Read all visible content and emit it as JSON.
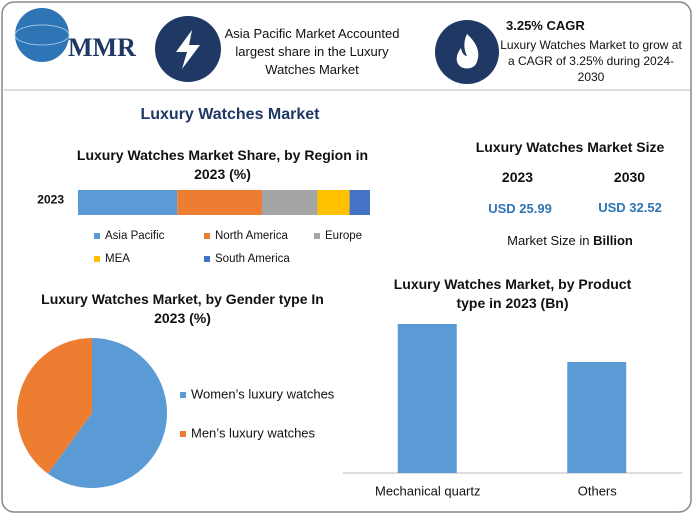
{
  "header": {
    "logo": "MMR",
    "info_left": "Asia Pacific Market Accounted largest share in the Luxury Watches Market",
    "info_right_title": "3.25% CAGR",
    "info_right": "Luxury Watches Market to grow at a CAGR of 3.25% during 2024-2030"
  },
  "title": "Luxury Watches Market",
  "market_size": {
    "title": "Luxury Watches Market Size",
    "years": [
      "2023",
      "2030"
    ],
    "values": [
      "USD 25.99",
      "USD 32.52"
    ],
    "note": "Market Size in",
    "note_unit": "Billion"
  },
  "chart_data": [
    {
      "type": "bar",
      "stacked": true,
      "orientation": "horizontal",
      "title": "Luxury Watches Market Share, by Region in 2023 (%)",
      "categories": [
        "2023"
      ],
      "xlim": [
        0,
        100
      ],
      "series": [
        {
          "name": "Asia Pacific",
          "color": "#5b9bd5",
          "values": [
            34
          ]
        },
        {
          "name": "North America",
          "color": "#ed7d31",
          "values": [
            29
          ]
        },
        {
          "name": "Europe",
          "color": "#a5a5a5",
          "values": [
            19
          ]
        },
        {
          "name": "MEA",
          "color": "#ffc000",
          "values": [
            11
          ]
        },
        {
          "name": "South America",
          "color": "#4472c4",
          "values": [
            7
          ]
        }
      ]
    },
    {
      "type": "pie",
      "title": "Luxury Watches Market, by Gender type In 2023 (%)",
      "categories": [
        "Women’s luxury watches",
        "Men’s luxury watches"
      ],
      "values": [
        60,
        40
      ],
      "colors": [
        "#5b9bd5",
        "#ed7d31"
      ]
    },
    {
      "type": "bar",
      "title": "Luxury Watches Market, by Product type in 2023 (Bn)",
      "categories": [
        "Mechanical quartz",
        "Others"
      ],
      "values": [
        14.9,
        11.1
      ],
      "color": "#5b9bd5",
      "ylim": [
        0,
        16
      ]
    }
  ]
}
